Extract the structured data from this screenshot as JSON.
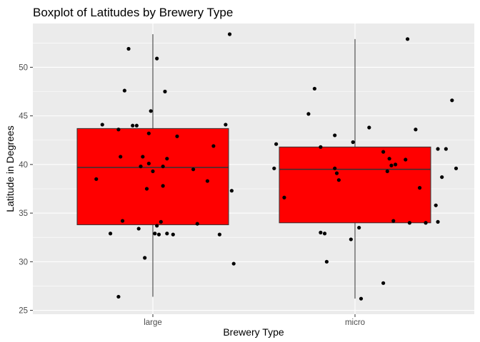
{
  "chart_data": {
    "type": "boxplot",
    "title": "Boxplot of Latitudes by Brewery Type",
    "xlabel": "Brewery Type",
    "ylabel": "Latitude in Degrees",
    "categories": [
      "large",
      "micro"
    ],
    "ylim": [
      24.6,
      54.5
    ],
    "yticks": [
      25,
      30,
      35,
      40,
      45,
      50
    ],
    "grid": true,
    "background": "#ebebeb",
    "box_fill": "#ff0000",
    "point_color": "#000000",
    "boxes": [
      {
        "category": "large",
        "min": 26.4,
        "q1": 33.8,
        "median": 39.7,
        "q3": 43.7,
        "max": 53.4
      },
      {
        "category": "micro",
        "min": 26.2,
        "q1": 34.0,
        "median": 39.5,
        "q3": 41.8,
        "max": 52.9
      }
    ],
    "points": [
      {
        "category": "large",
        "jitter": -0.28,
        "y": 38.5
      },
      {
        "category": "large",
        "jitter": -0.25,
        "y": 44.1
      },
      {
        "category": "large",
        "jitter": -0.21,
        "y": 32.9
      },
      {
        "category": "large",
        "jitter": -0.17,
        "y": 43.6
      },
      {
        "category": "large",
        "jitter": -0.17,
        "y": 26.4
      },
      {
        "category": "large",
        "jitter": -0.16,
        "y": 40.8
      },
      {
        "category": "large",
        "jitter": -0.15,
        "y": 34.2
      },
      {
        "category": "large",
        "jitter": -0.14,
        "y": 47.6
      },
      {
        "category": "large",
        "jitter": -0.12,
        "y": 51.9
      },
      {
        "category": "large",
        "jitter": -0.1,
        "y": 44.0
      },
      {
        "category": "large",
        "jitter": -0.08,
        "y": 44.0
      },
      {
        "category": "large",
        "jitter": -0.07,
        "y": 33.4
      },
      {
        "category": "large",
        "jitter": -0.06,
        "y": 39.8
      },
      {
        "category": "large",
        "jitter": -0.05,
        "y": 40.8
      },
      {
        "category": "large",
        "jitter": -0.04,
        "y": 30.4
      },
      {
        "category": "large",
        "jitter": -0.03,
        "y": 37.5
      },
      {
        "category": "large",
        "jitter": -0.02,
        "y": 43.2
      },
      {
        "category": "large",
        "jitter": -0.02,
        "y": 40.1
      },
      {
        "category": "large",
        "jitter": -0.01,
        "y": 45.5
      },
      {
        "category": "large",
        "jitter": 0.0,
        "y": 39.3
      },
      {
        "category": "large",
        "jitter": 0.01,
        "y": 32.9
      },
      {
        "category": "large",
        "jitter": 0.02,
        "y": 50.9
      },
      {
        "category": "large",
        "jitter": 0.02,
        "y": 33.7
      },
      {
        "category": "large",
        "jitter": 0.03,
        "y": 32.8
      },
      {
        "category": "large",
        "jitter": 0.04,
        "y": 34.1
      },
      {
        "category": "large",
        "jitter": 0.05,
        "y": 39.8
      },
      {
        "category": "large",
        "jitter": 0.05,
        "y": 37.8
      },
      {
        "category": "large",
        "jitter": 0.06,
        "y": 47.5
      },
      {
        "category": "large",
        "jitter": 0.07,
        "y": 40.6
      },
      {
        "category": "large",
        "jitter": 0.07,
        "y": 32.9
      },
      {
        "category": "large",
        "jitter": 0.1,
        "y": 32.8
      },
      {
        "category": "large",
        "jitter": 0.12,
        "y": 42.9
      },
      {
        "category": "large",
        "jitter": 0.2,
        "y": 39.5
      },
      {
        "category": "large",
        "jitter": 0.22,
        "y": 33.9
      },
      {
        "category": "large",
        "jitter": 0.27,
        "y": 38.3
      },
      {
        "category": "large",
        "jitter": 0.3,
        "y": 41.9
      },
      {
        "category": "large",
        "jitter": 0.33,
        "y": 32.8
      },
      {
        "category": "large",
        "jitter": 0.36,
        "y": 44.1
      },
      {
        "category": "large",
        "jitter": 0.38,
        "y": 53.4
      },
      {
        "category": "large",
        "jitter": 0.39,
        "y": 37.3
      },
      {
        "category": "large",
        "jitter": 0.4,
        "y": 29.8
      },
      {
        "category": "micro",
        "jitter": -0.4,
        "y": 39.6
      },
      {
        "category": "micro",
        "jitter": -0.39,
        "y": 42.1
      },
      {
        "category": "micro",
        "jitter": -0.35,
        "y": 36.6
      },
      {
        "category": "micro",
        "jitter": -0.23,
        "y": 45.2
      },
      {
        "category": "micro",
        "jitter": -0.2,
        "y": 47.8
      },
      {
        "category": "micro",
        "jitter": -0.17,
        "y": 41.8
      },
      {
        "category": "micro",
        "jitter": -0.17,
        "y": 33.0
      },
      {
        "category": "micro",
        "jitter": -0.15,
        "y": 32.9
      },
      {
        "category": "micro",
        "jitter": -0.14,
        "y": 30.0
      },
      {
        "category": "micro",
        "jitter": -0.1,
        "y": 43.0
      },
      {
        "category": "micro",
        "jitter": -0.1,
        "y": 39.6
      },
      {
        "category": "micro",
        "jitter": -0.09,
        "y": 39.1
      },
      {
        "category": "micro",
        "jitter": -0.08,
        "y": 38.4
      },
      {
        "category": "micro",
        "jitter": -0.02,
        "y": 32.3
      },
      {
        "category": "micro",
        "jitter": -0.01,
        "y": 42.3
      },
      {
        "category": "micro",
        "jitter": 0.02,
        "y": 33.5
      },
      {
        "category": "micro",
        "jitter": 0.03,
        "y": 26.2
      },
      {
        "category": "micro",
        "jitter": 0.07,
        "y": 43.8
      },
      {
        "category": "micro",
        "jitter": 0.14,
        "y": 41.3
      },
      {
        "category": "micro",
        "jitter": 0.14,
        "y": 27.8
      },
      {
        "category": "micro",
        "jitter": 0.16,
        "y": 39.3
      },
      {
        "category": "micro",
        "jitter": 0.17,
        "y": 40.6
      },
      {
        "category": "micro",
        "jitter": 0.18,
        "y": 39.9
      },
      {
        "category": "micro",
        "jitter": 0.19,
        "y": 34.2
      },
      {
        "category": "micro",
        "jitter": 0.2,
        "y": 40.0
      },
      {
        "category": "micro",
        "jitter": 0.25,
        "y": 40.5
      },
      {
        "category": "micro",
        "jitter": 0.26,
        "y": 52.9
      },
      {
        "category": "micro",
        "jitter": 0.27,
        "y": 34.0
      },
      {
        "category": "micro",
        "jitter": 0.3,
        "y": 43.6
      },
      {
        "category": "micro",
        "jitter": 0.32,
        "y": 37.6
      },
      {
        "category": "micro",
        "jitter": 0.35,
        "y": 34.0
      },
      {
        "category": "micro",
        "jitter": 0.4,
        "y": 35.8
      },
      {
        "category": "micro",
        "jitter": 0.41,
        "y": 34.1
      },
      {
        "category": "micro",
        "jitter": 0.41,
        "y": 41.6
      },
      {
        "category": "micro",
        "jitter": 0.43,
        "y": 38.7
      },
      {
        "category": "micro",
        "jitter": 0.45,
        "y": 41.6
      },
      {
        "category": "micro",
        "jitter": 0.48,
        "y": 46.6
      },
      {
        "category": "micro",
        "jitter": 0.5,
        "y": 39.6
      }
    ]
  }
}
